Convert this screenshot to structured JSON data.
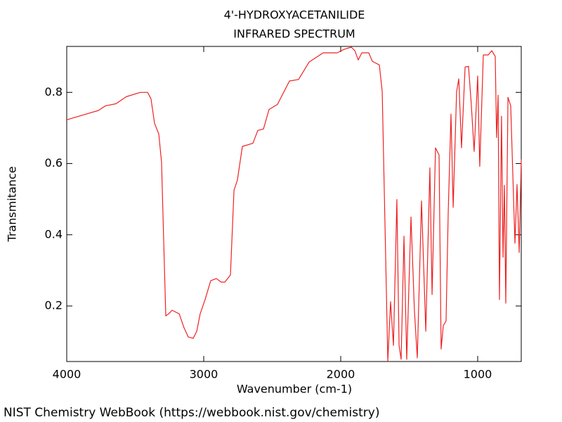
{
  "chart_data": {
    "type": "line",
    "title": "4'-HYDROXYACETANILIDE",
    "subtitle": "INFRARED SPECTRUM",
    "x_label": "Wavenumber (cm-1)",
    "y_label": "Transmitance",
    "source": "NIST Chemistry WebBook (https://webbook.nist.gov/chemistry)",
    "color": "#ee2222",
    "xlim": [
      4000,
      682
    ],
    "ylim": [
      0.044,
      0.929
    ],
    "xticks": [
      4000,
      3000,
      2000,
      1000
    ],
    "yticks": [
      0.2,
      0.4,
      0.6,
      0.8
    ],
    "x": [
      4000,
      3769,
      3718,
      3641,
      3564,
      3462,
      3410,
      3385,
      3359,
      3328,
      3308,
      3277,
      3256,
      3231,
      3179,
      3144,
      3113,
      3077,
      3051,
      3026,
      2990,
      2949,
      2908,
      2872,
      2846,
      2805,
      2779,
      2754,
      2718,
      2641,
      2605,
      2564,
      2523,
      2462,
      2374,
      2308,
      2231,
      2128,
      2026,
      1974,
      1923,
      1897,
      1872,
      1846,
      1795,
      1769,
      1718,
      1697,
      1682,
      1656,
      1636,
      1615,
      1590,
      1574,
      1559,
      1538,
      1518,
      1487,
      1462,
      1441,
      1410,
      1379,
      1349,
      1333,
      1308,
      1282,
      1267,
      1251,
      1231,
      1215,
      1195,
      1179,
      1154,
      1138,
      1118,
      1092,
      1067,
      1046,
      1026,
      1000,
      985,
      959,
      923,
      897,
      872,
      862,
      851,
      841,
      826,
      815,
      805,
      795,
      779,
      759,
      728,
      713,
      697,
      682
    ],
    "values": [
      0.723,
      0.749,
      0.762,
      0.768,
      0.788,
      0.8,
      0.8,
      0.782,
      0.713,
      0.683,
      0.604,
      0.172,
      0.178,
      0.188,
      0.178,
      0.139,
      0.113,
      0.109,
      0.129,
      0.178,
      0.218,
      0.271,
      0.277,
      0.267,
      0.267,
      0.287,
      0.525,
      0.554,
      0.648,
      0.657,
      0.693,
      0.697,
      0.752,
      0.766,
      0.832,
      0.836,
      0.885,
      0.911,
      0.911,
      0.921,
      0.927,
      0.917,
      0.891,
      0.911,
      0.911,
      0.887,
      0.877,
      0.802,
      0.525,
      0.046,
      0.212,
      0.089,
      0.499,
      0.089,
      0.05,
      0.396,
      0.05,
      0.45,
      0.188,
      0.054,
      0.495,
      0.129,
      0.588,
      0.232,
      0.644,
      0.624,
      0.079,
      0.145,
      0.158,
      0.465,
      0.739,
      0.477,
      0.802,
      0.838,
      0.644,
      0.871,
      0.873,
      0.762,
      0.634,
      0.846,
      0.592,
      0.905,
      0.905,
      0.917,
      0.901,
      0.673,
      0.792,
      0.218,
      0.733,
      0.337,
      0.539,
      0.208,
      0.786,
      0.762,
      0.376,
      0.541,
      0.35,
      0.612
    ]
  }
}
